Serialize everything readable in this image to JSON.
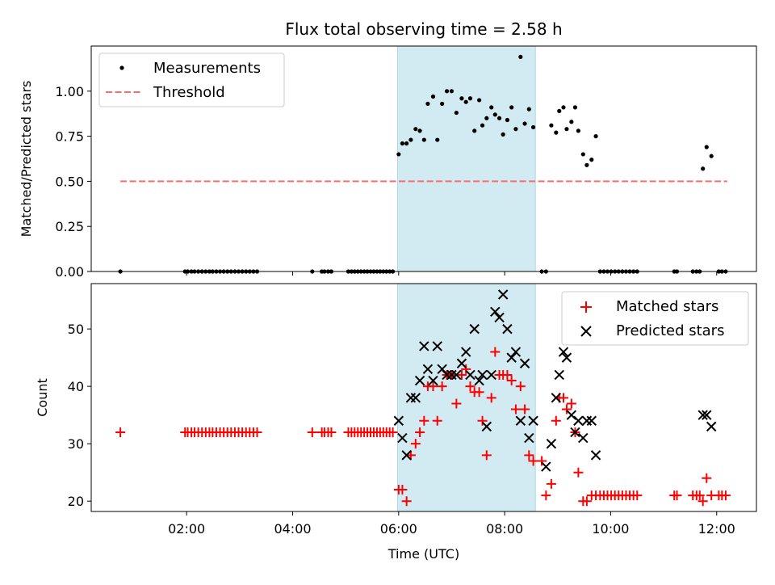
{
  "figure": {
    "title": "Flux total observing time = 2.58 h",
    "xlabel": "Time (UTC)"
  },
  "colors": {
    "shade": "#add8e6",
    "threshold": "#ff6b6b",
    "matched": "#ff0000",
    "predicted": "#000000",
    "measurements": "#000000"
  },
  "chart_data": [
    {
      "type": "scatter",
      "ylabel": "Matched/Predicted stars",
      "xlim": [
        0.2,
        12.75
      ],
      "ylim": [
        0,
        1.25
      ],
      "yticks": [
        0.0,
        0.25,
        0.5,
        0.75,
        1.0
      ],
      "ytick_labels": [
        "0.00",
        "0.25",
        "0.50",
        "0.75",
        "1.00"
      ],
      "shaded_interval": [
        5.98,
        8.58
      ],
      "threshold": {
        "name": "Threshold",
        "y": 0.5,
        "x": [
          0.75,
          12.2
        ]
      },
      "legend": {
        "position": "upper left",
        "entries": [
          "Measurements",
          "Threshold"
        ]
      },
      "series": [
        {
          "name": "Measurements",
          "points": [
            [
              0.75,
              0
            ],
            [
              1.97,
              0
            ],
            [
              2.02,
              0
            ],
            [
              2.09,
              0
            ],
            [
              2.15,
              0
            ],
            [
              2.22,
              0
            ],
            [
              2.29,
              0
            ],
            [
              2.36,
              0
            ],
            [
              2.43,
              0
            ],
            [
              2.49,
              0
            ],
            [
              2.56,
              0
            ],
            [
              2.63,
              0
            ],
            [
              2.7,
              0
            ],
            [
              2.77,
              0
            ],
            [
              2.84,
              0
            ],
            [
              2.91,
              0
            ],
            [
              2.98,
              0
            ],
            [
              3.05,
              0
            ],
            [
              3.12,
              0
            ],
            [
              3.19,
              0
            ],
            [
              3.26,
              0
            ],
            [
              3.33,
              0
            ],
            [
              4.37,
              0
            ],
            [
              4.55,
              0
            ],
            [
              4.6,
              0
            ],
            [
              4.67,
              0
            ],
            [
              4.73,
              0
            ],
            [
              5.05,
              0
            ],
            [
              5.11,
              0
            ],
            [
              5.17,
              0
            ],
            [
              5.23,
              0
            ],
            [
              5.29,
              0
            ],
            [
              5.35,
              0
            ],
            [
              5.41,
              0
            ],
            [
              5.47,
              0
            ],
            [
              5.53,
              0
            ],
            [
              5.59,
              0
            ],
            [
              5.65,
              0
            ],
            [
              5.71,
              0
            ],
            [
              5.77,
              0
            ],
            [
              5.83,
              0
            ],
            [
              5.89,
              0
            ],
            [
              6.0,
              0.65
            ],
            [
              6.07,
              0.71
            ],
            [
              6.15,
              0.71
            ],
            [
              6.23,
              0.73
            ],
            [
              6.32,
              0.79
            ],
            [
              6.4,
              0.78
            ],
            [
              6.48,
              0.73
            ],
            [
              6.55,
              0.93
            ],
            [
              6.65,
              0.97
            ],
            [
              6.73,
              0.73
            ],
            [
              6.82,
              0.93
            ],
            [
              6.91,
              1.0
            ],
            [
              7.0,
              1.0
            ],
            [
              7.09,
              0.88
            ],
            [
              7.19,
              0.96
            ],
            [
              7.27,
              0.94
            ],
            [
              7.35,
              0.96
            ],
            [
              7.43,
              0.78
            ],
            [
              7.52,
              0.95
            ],
            [
              7.58,
              0.81
            ],
            [
              7.66,
              0.85
            ],
            [
              7.75,
              0.91
            ],
            [
              7.82,
              0.87
            ],
            [
              7.9,
              0.85
            ],
            [
              7.97,
              0.76
            ],
            [
              8.05,
              0.84
            ],
            [
              8.13,
              0.91
            ],
            [
              8.21,
              0.79
            ],
            [
              8.3,
              1.19
            ],
            [
              8.38,
              0.82
            ],
            [
              8.46,
              0.9
            ],
            [
              8.54,
              0.8
            ],
            [
              8.7,
              0
            ],
            [
              8.78,
              0
            ],
            [
              8.88,
              0.81
            ],
            [
              8.97,
              0.77
            ],
            [
              9.03,
              0.89
            ],
            [
              9.11,
              0.91
            ],
            [
              9.17,
              0.79
            ],
            [
              9.26,
              0.83
            ],
            [
              9.33,
              0.91
            ],
            [
              9.39,
              0.78
            ],
            [
              9.48,
              0.65
            ],
            [
              9.55,
              0.59
            ],
            [
              9.64,
              0.62
            ],
            [
              9.72,
              0.75
            ],
            [
              9.8,
              0
            ],
            [
              9.87,
              0
            ],
            [
              9.94,
              0
            ],
            [
              10.01,
              0
            ],
            [
              10.08,
              0
            ],
            [
              10.15,
              0
            ],
            [
              10.22,
              0
            ],
            [
              10.29,
              0
            ],
            [
              10.36,
              0
            ],
            [
              10.43,
              0
            ],
            [
              10.5,
              0
            ],
            [
              11.2,
              0
            ],
            [
              11.25,
              0
            ],
            [
              11.55,
              0
            ],
            [
              11.62,
              0
            ],
            [
              11.68,
              0
            ],
            [
              11.74,
              0.57
            ],
            [
              11.81,
              0.69
            ],
            [
              11.9,
              0.64
            ],
            [
              12.04,
              0
            ],
            [
              12.1,
              0
            ],
            [
              12.17,
              0
            ]
          ]
        }
      ]
    },
    {
      "type": "scatter",
      "xlabel": "Time (UTC)",
      "ylabel": "Count",
      "xlim": [
        0.2,
        12.75
      ],
      "ylim": [
        18.2,
        57.9
      ],
      "yticks": [
        20,
        30,
        40,
        50
      ],
      "xticks": [
        2,
        4,
        6,
        8,
        10,
        12
      ],
      "xtick_labels": [
        "02:00",
        "04:00",
        "06:00",
        "08:00",
        "10:00",
        "12:00"
      ],
      "shaded_interval": [
        5.98,
        8.58
      ],
      "legend": {
        "position": "upper right",
        "entries": [
          "Matched stars",
          "Predicted stars"
        ]
      },
      "series": [
        {
          "name": "Matched stars",
          "marker": "+",
          "points": [
            [
              0.75,
              32
            ],
            [
              1.97,
              32
            ],
            [
              2.02,
              32
            ],
            [
              2.09,
              32
            ],
            [
              2.15,
              32
            ],
            [
              2.22,
              32
            ],
            [
              2.29,
              32
            ],
            [
              2.36,
              32
            ],
            [
              2.43,
              32
            ],
            [
              2.49,
              32
            ],
            [
              2.56,
              32
            ],
            [
              2.63,
              32
            ],
            [
              2.7,
              32
            ],
            [
              2.77,
              32
            ],
            [
              2.84,
              32
            ],
            [
              2.91,
              32
            ],
            [
              2.98,
              32
            ],
            [
              3.05,
              32
            ],
            [
              3.12,
              32
            ],
            [
              3.19,
              32
            ],
            [
              3.26,
              32
            ],
            [
              3.33,
              32
            ],
            [
              4.37,
              32
            ],
            [
              4.55,
              32
            ],
            [
              4.6,
              32
            ],
            [
              4.67,
              32
            ],
            [
              4.73,
              32
            ],
            [
              5.05,
              32
            ],
            [
              5.11,
              32
            ],
            [
              5.17,
              32
            ],
            [
              5.23,
              32
            ],
            [
              5.29,
              32
            ],
            [
              5.35,
              32
            ],
            [
              5.41,
              32
            ],
            [
              5.47,
              32
            ],
            [
              5.53,
              32
            ],
            [
              5.59,
              32
            ],
            [
              5.65,
              32
            ],
            [
              5.71,
              32
            ],
            [
              5.77,
              32
            ],
            [
              5.83,
              32
            ],
            [
              5.89,
              32
            ],
            [
              6.0,
              22
            ],
            [
              6.07,
              22
            ],
            [
              6.15,
              20
            ],
            [
              6.23,
              28
            ],
            [
              6.32,
              30
            ],
            [
              6.4,
              32
            ],
            [
              6.48,
              34
            ],
            [
              6.55,
              40
            ],
            [
              6.65,
              40
            ],
            [
              6.73,
              34
            ],
            [
              6.82,
              40
            ],
            [
              6.91,
              42
            ],
            [
              7.0,
              42
            ],
            [
              7.09,
              37
            ],
            [
              7.19,
              42
            ],
            [
              7.27,
              43
            ],
            [
              7.35,
              40
            ],
            [
              7.43,
              39
            ],
            [
              7.52,
              39
            ],
            [
              7.58,
              34
            ],
            [
              7.66,
              28
            ],
            [
              7.75,
              38
            ],
            [
              7.82,
              46
            ],
            [
              7.9,
              42
            ],
            [
              7.97,
              42
            ],
            [
              8.05,
              42
            ],
            [
              8.13,
              41
            ],
            [
              8.21,
              36
            ],
            [
              8.3,
              40
            ],
            [
              8.38,
              36
            ],
            [
              8.46,
              28
            ],
            [
              8.54,
              27
            ],
            [
              8.7,
              27
            ],
            [
              8.78,
              21
            ],
            [
              8.88,
              23
            ],
            [
              8.97,
              34
            ],
            [
              9.03,
              38
            ],
            [
              9.11,
              38
            ],
            [
              9.17,
              36
            ],
            [
              9.26,
              37
            ],
            [
              9.33,
              32
            ],
            [
              9.39,
              25
            ],
            [
              9.48,
              20
            ],
            [
              9.55,
              20
            ],
            [
              9.64,
              21
            ],
            [
              9.72,
              21
            ],
            [
              9.8,
              21
            ],
            [
              9.87,
              21
            ],
            [
              9.94,
              21
            ],
            [
              10.01,
              21
            ],
            [
              10.08,
              21
            ],
            [
              10.15,
              21
            ],
            [
              10.22,
              21
            ],
            [
              10.29,
              21
            ],
            [
              10.36,
              21
            ],
            [
              10.43,
              21
            ],
            [
              10.5,
              21
            ],
            [
              11.2,
              21
            ],
            [
              11.25,
              21
            ],
            [
              11.55,
              21
            ],
            [
              11.62,
              21
            ],
            [
              11.68,
              21
            ],
            [
              11.74,
              20
            ],
            [
              11.81,
              24
            ],
            [
              11.9,
              21
            ],
            [
              12.04,
              21
            ],
            [
              12.1,
              21
            ],
            [
              12.17,
              21
            ]
          ]
        },
        {
          "name": "Predicted stars",
          "marker": "x",
          "points": [
            [
              6.0,
              34
            ],
            [
              6.07,
              31
            ],
            [
              6.15,
              28
            ],
            [
              6.23,
              38
            ],
            [
              6.32,
              38
            ],
            [
              6.4,
              41
            ],
            [
              6.48,
              47
            ],
            [
              6.55,
              43
            ],
            [
              6.65,
              41
            ],
            [
              6.73,
              47
            ],
            [
              6.82,
              43
            ],
            [
              6.91,
              42
            ],
            [
              7.0,
              42
            ],
            [
              7.09,
              42
            ],
            [
              7.19,
              44
            ],
            [
              7.27,
              46
            ],
            [
              7.35,
              42
            ],
            [
              7.43,
              50
            ],
            [
              7.52,
              41
            ],
            [
              7.58,
              42
            ],
            [
              7.66,
              33
            ],
            [
              7.75,
              42
            ],
            [
              7.82,
              53
            ],
            [
              7.9,
              52
            ],
            [
              7.97,
              56
            ],
            [
              8.05,
              50
            ],
            [
              8.13,
              45
            ],
            [
              8.21,
              46
            ],
            [
              8.3,
              34
            ],
            [
              8.38,
              44
            ],
            [
              8.46,
              31
            ],
            [
              8.54,
              34
            ],
            [
              8.78,
              26
            ],
            [
              8.88,
              30
            ],
            [
              8.97,
              38
            ],
            [
              9.03,
              42
            ],
            [
              9.11,
              46
            ],
            [
              9.17,
              45
            ],
            [
              9.26,
              35
            ],
            [
              9.33,
              32
            ],
            [
              9.39,
              34
            ],
            [
              9.48,
              31
            ],
            [
              9.55,
              34
            ],
            [
              9.64,
              34
            ],
            [
              9.72,
              28
            ],
            [
              11.74,
              35
            ],
            [
              11.81,
              35
            ],
            [
              11.9,
              33
            ]
          ]
        }
      ]
    }
  ]
}
